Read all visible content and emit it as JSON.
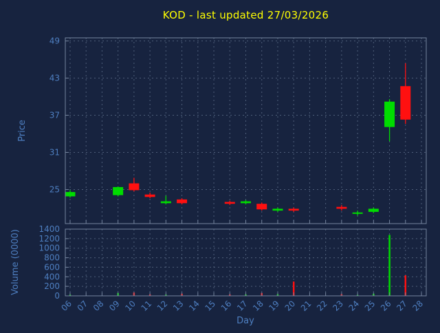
{
  "title": "KOD - last updated 27/03/2026",
  "colors": {
    "background": "#17233F",
    "frame": "#76869F",
    "grid": "#4F5F7A",
    "tick_text": "#4E7FC1",
    "axis_text": "#4E7FC1",
    "title_text": "#FFFF00",
    "up": "#00DC00",
    "down": "#FF1010"
  },
  "chart_data": [
    {
      "type": "candlestick",
      "title": "KOD - last updated 27/03/2026",
      "xlabel": "Day",
      "ylabel": "Price",
      "xlim": [
        5.7,
        28.3
      ],
      "ylim": [
        19.5,
        49.5
      ],
      "yticks": [
        25,
        31,
        37,
        43,
        49
      ],
      "xticks": [
        6,
        7,
        8,
        9,
        10,
        11,
        12,
        13,
        14,
        15,
        16,
        17,
        18,
        19,
        20,
        21,
        22,
        23,
        24,
        25,
        26,
        27,
        28
      ],
      "xtick_labels": [
        "06",
        "07",
        "08",
        "09",
        "10",
        "11",
        "12",
        "13",
        "14",
        "15",
        "16",
        "17",
        "18",
        "19",
        "20",
        "21",
        "22",
        "23",
        "24",
        "25",
        "26",
        "27",
        "28"
      ],
      "grid": true,
      "legend": "none",
      "candles": [
        {
          "day": 6,
          "open": 23.9,
          "high": 24.9,
          "low": 23.7,
          "close": 24.6
        },
        {
          "day": 9,
          "open": 24.1,
          "high": 25.5,
          "low": 23.9,
          "close": 25.4
        },
        {
          "day": 10,
          "open": 26.0,
          "high": 26.9,
          "low": 24.7,
          "close": 24.9
        },
        {
          "day": 11,
          "open": 24.2,
          "high": 24.5,
          "low": 23.6,
          "close": 23.8
        },
        {
          "day": 12,
          "open": 22.8,
          "high": 24.0,
          "low": 22.6,
          "close": 23.1
        },
        {
          "day": 13,
          "open": 23.4,
          "high": 23.6,
          "low": 22.6,
          "close": 22.8
        },
        {
          "day": 16,
          "open": 23.0,
          "high": 23.2,
          "low": 22.5,
          "close": 22.7
        },
        {
          "day": 17,
          "open": 22.8,
          "high": 23.3,
          "low": 22.6,
          "close": 23.1
        },
        {
          "day": 18,
          "open": 22.7,
          "high": 22.9,
          "low": 21.6,
          "close": 21.8
        },
        {
          "day": 19,
          "open": 21.6,
          "high": 22.1,
          "low": 21.4,
          "close": 21.9
        },
        {
          "day": 20,
          "open": 21.9,
          "high": 22.1,
          "low": 21.4,
          "close": 21.6
        },
        {
          "day": 23,
          "open": 22.2,
          "high": 22.5,
          "low": 21.6,
          "close": 21.9
        },
        {
          "day": 24,
          "open": 21.1,
          "high": 21.6,
          "low": 20.8,
          "close": 21.3
        },
        {
          "day": 25,
          "open": 21.4,
          "high": 22.1,
          "low": 21.2,
          "close": 21.9
        },
        {
          "day": 26,
          "open": 35.1,
          "high": 39.6,
          "low": 32.8,
          "close": 39.2
        },
        {
          "day": 27,
          "open": 41.7,
          "high": 45.4,
          "low": 35.6,
          "close": 36.3
        }
      ]
    },
    {
      "type": "bar",
      "xlabel": "Day",
      "ylabel": "Volume (0000)",
      "ylim": [
        0,
        1400
      ],
      "yticks": [
        0,
        200,
        400,
        600,
        800,
        1000,
        1200,
        1400
      ],
      "grid": true,
      "bars": [
        {
          "day": 6,
          "volume": 25,
          "direction": "up"
        },
        {
          "day": 9,
          "volume": 60,
          "direction": "up"
        },
        {
          "day": 10,
          "volume": 70,
          "direction": "down"
        },
        {
          "day": 11,
          "volume": 30,
          "direction": "down"
        },
        {
          "day": 12,
          "volume": 25,
          "direction": "up"
        },
        {
          "day": 13,
          "volume": 45,
          "direction": "down"
        },
        {
          "day": 16,
          "volume": 30,
          "direction": "down"
        },
        {
          "day": 17,
          "volume": 30,
          "direction": "up"
        },
        {
          "day": 18,
          "volume": 60,
          "direction": "down"
        },
        {
          "day": 19,
          "volume": 35,
          "direction": "up"
        },
        {
          "day": 20,
          "volume": 300,
          "direction": "down"
        },
        {
          "day": 23,
          "volume": 35,
          "direction": "down"
        },
        {
          "day": 24,
          "volume": 20,
          "direction": "up"
        },
        {
          "day": 25,
          "volume": 45,
          "direction": "up"
        },
        {
          "day": 26,
          "volume": 1280,
          "direction": "up"
        },
        {
          "day": 27,
          "volume": 430,
          "direction": "down"
        }
      ]
    }
  ]
}
